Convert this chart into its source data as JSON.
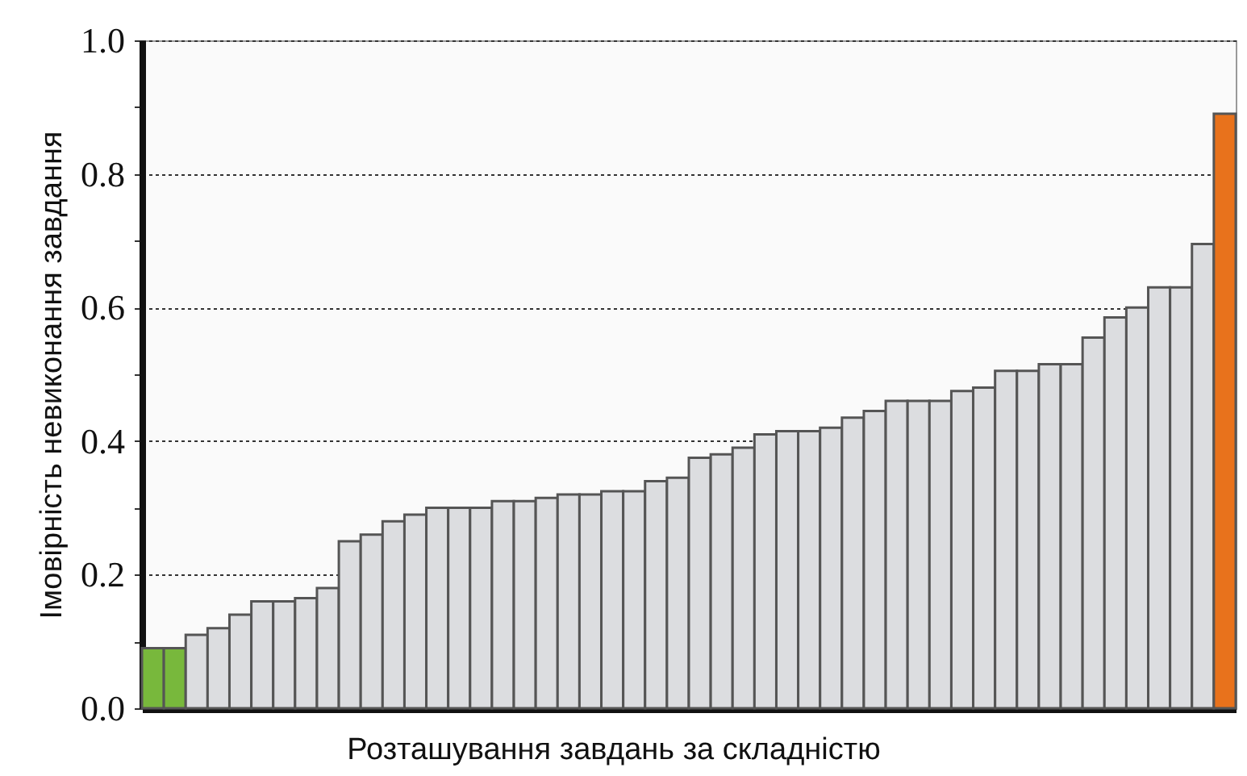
{
  "chart_data": {
    "type": "bar",
    "xlabel": "Розташування завдань за складністю",
    "ylabel": "Імовірність невиконання завдання",
    "categories": [
      null,
      null,
      null,
      null,
      null,
      null,
      null,
      null,
      null,
      null,
      null,
      null,
      null,
      null,
      null,
      null,
      null,
      null,
      null,
      null,
      null,
      null,
      null,
      null,
      null,
      null,
      null,
      null,
      null,
      null,
      null,
      null,
      null,
      null,
      null,
      null,
      null,
      null,
      null,
      null,
      null,
      null,
      null,
      null,
      null,
      null,
      null,
      null,
      null,
      null
    ],
    "values": [
      0.09,
      0.09,
      0.11,
      0.12,
      0.14,
      0.16,
      0.16,
      0.165,
      0.18,
      0.25,
      0.26,
      0.28,
      0.29,
      0.3,
      0.3,
      0.3,
      0.31,
      0.31,
      0.315,
      0.32,
      0.32,
      0.325,
      0.325,
      0.34,
      0.345,
      0.375,
      0.38,
      0.39,
      0.41,
      0.415,
      0.415,
      0.42,
      0.435,
      0.445,
      0.46,
      0.46,
      0.46,
      0.475,
      0.48,
      0.505,
      0.505,
      0.515,
      0.515,
      0.555,
      0.585,
      0.6,
      0.63,
      0.63,
      0.695,
      0.89
    ],
    "colors": [
      "#78b83c",
      "#78b83c",
      "#dcdde0",
      "#dcdde0",
      "#dcdde0",
      "#dcdde0",
      "#dcdde0",
      "#dcdde0",
      "#dcdde0",
      "#dcdde0",
      "#dcdde0",
      "#dcdde0",
      "#dcdde0",
      "#dcdde0",
      "#dcdde0",
      "#dcdde0",
      "#dcdde0",
      "#dcdde0",
      "#dcdde0",
      "#dcdde0",
      "#dcdde0",
      "#dcdde0",
      "#dcdde0",
      "#dcdde0",
      "#dcdde0",
      "#dcdde0",
      "#dcdde0",
      "#dcdde0",
      "#dcdde0",
      "#dcdde0",
      "#dcdde0",
      "#dcdde0",
      "#dcdde0",
      "#dcdde0",
      "#dcdde0",
      "#dcdde0",
      "#dcdde0",
      "#dcdde0",
      "#dcdde0",
      "#dcdde0",
      "#dcdde0",
      "#dcdde0",
      "#dcdde0",
      "#dcdde0",
      "#dcdde0",
      "#dcdde0",
      "#dcdde0",
      "#dcdde0",
      "#dcdde0",
      "#e8721c"
    ],
    "ylim": [
      0,
      1
    ],
    "yticks": [
      {
        "value": 0,
        "label": "0.0"
      },
      {
        "value": 0.1,
        "label": null
      },
      0.2,
      {
        "value": 0.3,
        "label": null
      },
      0.4,
      {
        "value": 0.5,
        "label": null
      },
      0.6,
      {
        "value": 0.7,
        "label": null
      },
      0.8,
      {
        "value": 0.9,
        "label": null
      },
      {
        "value": 1,
        "label": "1.0"
      }
    ],
    "grid": "y",
    "tick_labels": "y"
  }
}
